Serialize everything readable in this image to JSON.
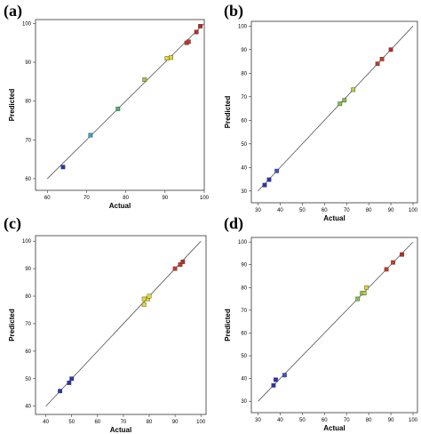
{
  "chart_data": [
    {
      "type": "scatter",
      "panel_label": "(a)",
      "xlabel": "Actual",
      "ylabel": "Predicted",
      "xlim": [
        57,
        100
      ],
      "ylim": [
        57,
        101
      ],
      "xticks": [
        60,
        70,
        80,
        90,
        100
      ],
      "yticks": [
        60,
        70,
        80,
        90,
        100
      ],
      "reference_line": [
        [
          60,
          60
        ],
        [
          100,
          100
        ]
      ],
      "points": [
        {
          "x": 64.0,
          "y": 63.0,
          "color": "#2b35b0"
        },
        {
          "x": 71.0,
          "y": 71.2,
          "color": "#2aa7cc"
        },
        {
          "x": 78.0,
          "y": 78.0,
          "color": "#3fb86a"
        },
        {
          "x": 84.8,
          "y": 85.5,
          "color": "#9dca3a"
        },
        {
          "x": 90.5,
          "y": 91.0,
          "color": "#e3d92c"
        },
        {
          "x": 91.5,
          "y": 91.2,
          "color": "#e3d92c"
        },
        {
          "x": 95.5,
          "y": 95.0,
          "color": "#c93a25"
        },
        {
          "x": 96.0,
          "y": 95.3,
          "color": "#c93a25"
        },
        {
          "x": 98.0,
          "y": 97.8,
          "color": "#c02a22"
        },
        {
          "x": 99.0,
          "y": 99.3,
          "color": "#c02a22"
        }
      ]
    },
    {
      "type": "scatter",
      "panel_label": "(b)",
      "xlabel": "Actual",
      "ylabel": "Predicted",
      "xlim": [
        27,
        102
      ],
      "ylim": [
        25,
        102
      ],
      "xticks": [
        30,
        40,
        50,
        60,
        70,
        80,
        90,
        100
      ],
      "yticks": [
        30,
        40,
        50,
        60,
        70,
        80,
        90,
        100
      ],
      "reference_line": [
        [
          30,
          30
        ],
        [
          100,
          100
        ]
      ],
      "points": [
        {
          "x": 33.0,
          "y": 32.5,
          "color": "#2b35b0"
        },
        {
          "x": 35.0,
          "y": 34.8,
          "color": "#2b35b0"
        },
        {
          "x": 38.5,
          "y": 38.5,
          "color": "#3a55c8"
        },
        {
          "x": 67.0,
          "y": 67.0,
          "color": "#7fc24a"
        },
        {
          "x": 69.0,
          "y": 68.5,
          "color": "#7fc24a"
        },
        {
          "x": 73.0,
          "y": 73.0,
          "color": "#b3d03c"
        },
        {
          "x": 84.0,
          "y": 84.0,
          "color": "#c93a25"
        },
        {
          "x": 86.0,
          "y": 86.0,
          "color": "#c93a25"
        },
        {
          "x": 90.0,
          "y": 90.0,
          "color": "#c02a22"
        }
      ]
    },
    {
      "type": "scatter",
      "panel_label": "(c)",
      "xlabel": "Actual",
      "ylabel": "Predicted",
      "xlim": [
        36,
        102
      ],
      "ylim": [
        37,
        102
      ],
      "xticks": [
        40,
        50,
        60,
        70,
        80,
        90,
        100
      ],
      "yticks": [
        40,
        50,
        60,
        70,
        80,
        90,
        100
      ],
      "reference_line": [
        [
          40,
          40
        ],
        [
          100,
          100
        ]
      ],
      "points": [
        {
          "x": 45.5,
          "y": 45.5,
          "color": "#2b35b0"
        },
        {
          "x": 49.0,
          "y": 48.5,
          "color": "#2b35b0"
        },
        {
          "x": 50.0,
          "y": 50.0,
          "color": "#2b35b0"
        },
        {
          "x": 78.0,
          "y": 77.0,
          "color": "#e3d92c"
        },
        {
          "x": 78.0,
          "y": 79.0,
          "color": "#e3d92c"
        },
        {
          "x": 79.5,
          "y": 79.0,
          "color": "#e3d92c"
        },
        {
          "x": 80.0,
          "y": 80.0,
          "color": "#e3d92c"
        },
        {
          "x": 90.0,
          "y": 90.0,
          "color": "#c93a25"
        },
        {
          "x": 92.0,
          "y": 91.5,
          "color": "#c93a25"
        },
        {
          "x": 93.0,
          "y": 92.5,
          "color": "#c02a22"
        }
      ]
    },
    {
      "type": "scatter",
      "panel_label": "(d)",
      "xlabel": "Actual",
      "ylabel": "Predicted",
      "xlim": [
        27,
        102
      ],
      "ylim": [
        25,
        102
      ],
      "xticks": [
        30,
        40,
        50,
        60,
        70,
        80,
        90,
        100
      ],
      "yticks": [
        30,
        40,
        50,
        60,
        70,
        80,
        90,
        100
      ],
      "reference_line": [
        [
          30,
          30
        ],
        [
          100,
          100
        ]
      ],
      "points": [
        {
          "x": 37.0,
          "y": 37.0,
          "color": "#2b35b0"
        },
        {
          "x": 38.0,
          "y": 39.5,
          "color": "#2b35b0"
        },
        {
          "x": 42.0,
          "y": 41.5,
          "color": "#3a55c8"
        },
        {
          "x": 75.0,
          "y": 75.0,
          "color": "#7fc24a"
        },
        {
          "x": 77.0,
          "y": 77.5,
          "color": "#b3d03c"
        },
        {
          "x": 78.0,
          "y": 77.5,
          "color": "#b3d03c"
        },
        {
          "x": 79.0,
          "y": 80.0,
          "color": "#e3d92c"
        },
        {
          "x": 88.0,
          "y": 88.0,
          "color": "#c93a25"
        },
        {
          "x": 91.0,
          "y": 91.0,
          "color": "#c93a25"
        },
        {
          "x": 95.0,
          "y": 94.5,
          "color": "#c02a22"
        }
      ]
    }
  ]
}
